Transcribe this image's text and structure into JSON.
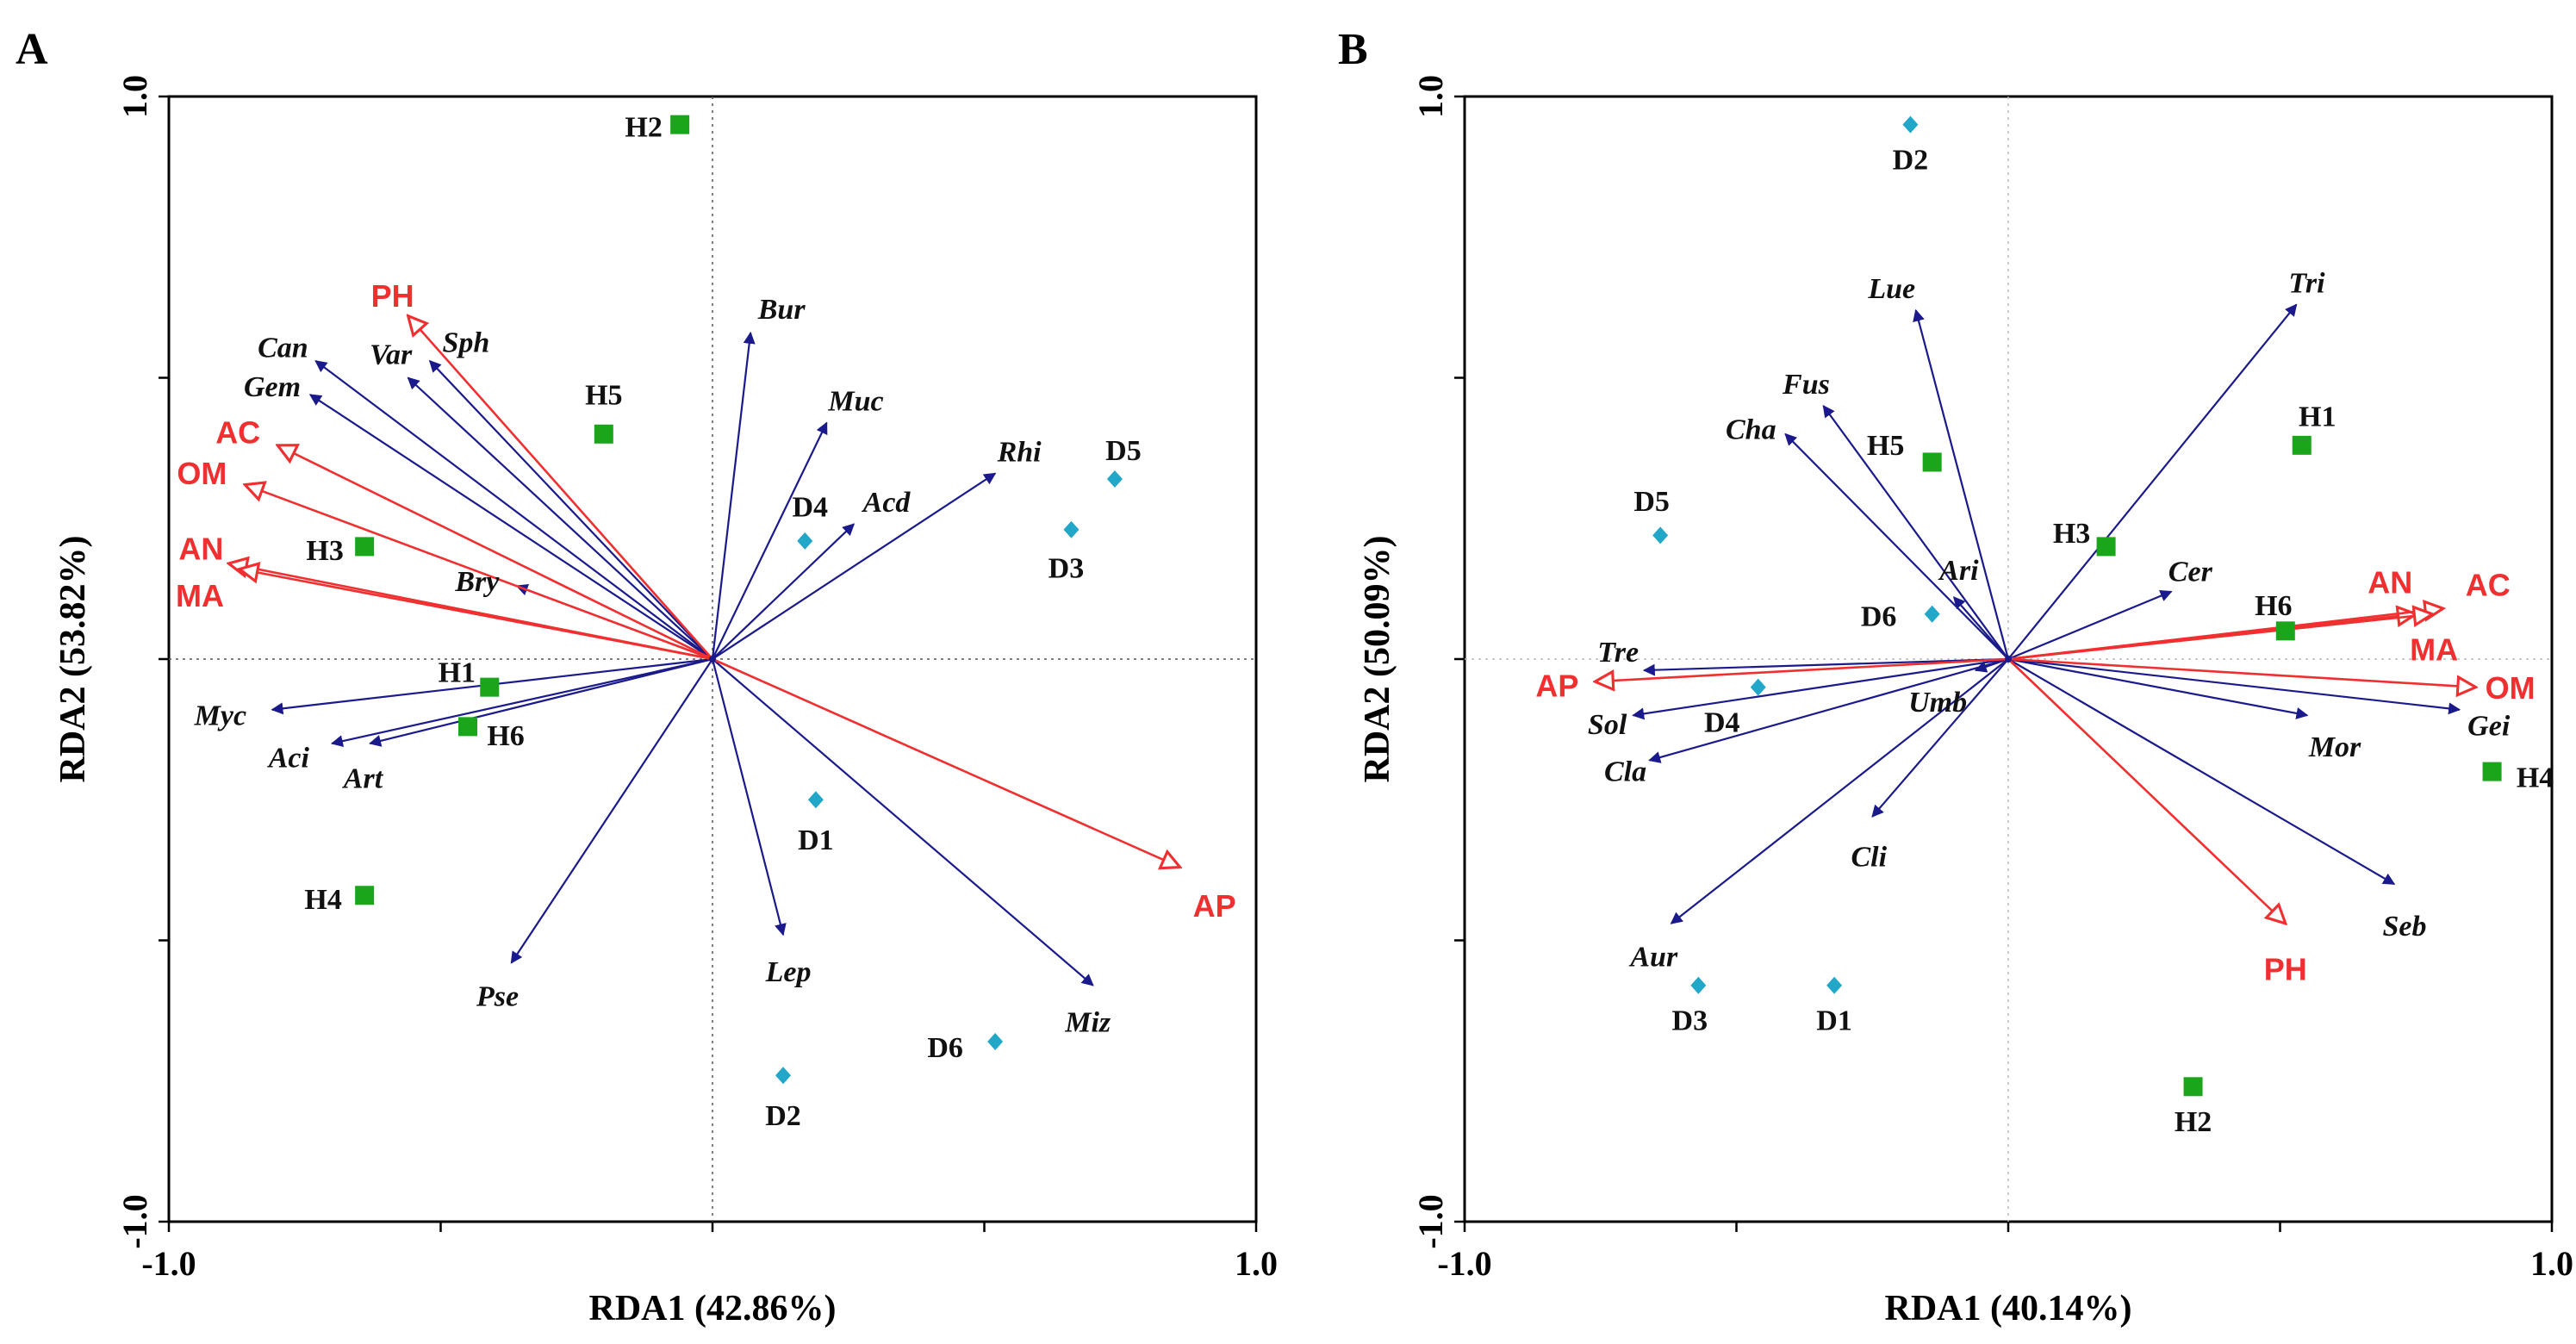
{
  "chart_data": [
    {
      "panel_label": "A",
      "type": "scatter",
      "subtype": "RDA biplot",
      "xlabel": "RDA1 (42.86%)",
      "ylabel": "RDA2 (53.82%)",
      "xlim": [
        -1.0,
        1.0
      ],
      "ylim": [
        -1.0,
        1.0
      ],
      "x_tick_labels": [
        "-1.0",
        "1.0"
      ],
      "y_tick_labels": [
        "1.0",
        "-1.0"
      ],
      "sites_healthy": [
        {
          "label": "H1",
          "x": -0.41,
          "y": -0.05
        },
        {
          "label": "H2",
          "x": -0.06,
          "y": 0.95
        },
        {
          "label": "H3",
          "x": -0.64,
          "y": 0.2
        },
        {
          "label": "H4",
          "x": -0.64,
          "y": -0.42
        },
        {
          "label": "H5",
          "x": -0.2,
          "y": 0.4
        },
        {
          "label": "H6",
          "x": -0.45,
          "y": -0.12
        }
      ],
      "sites_diseased": [
        {
          "label": "D1",
          "x": 0.19,
          "y": -0.25
        },
        {
          "label": "D2",
          "x": 0.13,
          "y": -0.74
        },
        {
          "label": "D3",
          "x": 0.66,
          "y": 0.23
        },
        {
          "label": "D4",
          "x": 0.17,
          "y": 0.21
        },
        {
          "label": "D5",
          "x": 0.74,
          "y": 0.32
        },
        {
          "label": "D6",
          "x": 0.52,
          "y": -0.68
        }
      ],
      "species": [
        {
          "label": "Can",
          "x": -0.73,
          "y": 0.53
        },
        {
          "label": "Var",
          "x": -0.56,
          "y": 0.5
        },
        {
          "label": "Sph",
          "x": -0.52,
          "y": 0.53
        },
        {
          "label": "Gem",
          "x": -0.74,
          "y": 0.47
        },
        {
          "label": "Bur",
          "x": 0.07,
          "y": 0.58
        },
        {
          "label": "Muc",
          "x": 0.21,
          "y": 0.42
        },
        {
          "label": "Acd",
          "x": 0.26,
          "y": 0.24
        },
        {
          "label": "Rhi",
          "x": 0.52,
          "y": 0.33
        },
        {
          "label": "Bry",
          "x": -0.36,
          "y": 0.13
        },
        {
          "label": "Myc",
          "x": -0.81,
          "y": -0.09
        },
        {
          "label": "Aci",
          "x": -0.7,
          "y": -0.15
        },
        {
          "label": "Art",
          "x": -0.63,
          "y": -0.15
        },
        {
          "label": "Pse",
          "x": -0.37,
          "y": -0.54
        },
        {
          "label": "Lep",
          "x": 0.13,
          "y": -0.49
        },
        {
          "label": "Miz",
          "x": 0.7,
          "y": -0.58
        }
      ],
      "environment": [
        {
          "label": "PH",
          "x": -0.56,
          "y": 0.61
        },
        {
          "label": "AC",
          "x": -0.8,
          "y": 0.38
        },
        {
          "label": "OM",
          "x": -0.86,
          "y": 0.31
        },
        {
          "label": "AN",
          "x": -0.89,
          "y": 0.17
        },
        {
          "label": "MA",
          "x": -0.87,
          "y": 0.16
        },
        {
          "label": "AP",
          "x": 0.86,
          "y": -0.37
        }
      ]
    },
    {
      "panel_label": "B",
      "type": "scatter",
      "subtype": "RDA biplot",
      "xlabel": "RDA1 (40.14%)",
      "ylabel": "RDA2 (50.09%)",
      "xlim": [
        -1.0,
        1.0
      ],
      "ylim": [
        -1.0,
        1.0
      ],
      "x_tick_labels": [
        "-1.0",
        "1.0"
      ],
      "y_tick_labels": [
        "1.0",
        "-1.0"
      ],
      "sites_healthy": [
        {
          "label": "H1",
          "x": 0.54,
          "y": 0.38
        },
        {
          "label": "H2",
          "x": 0.34,
          "y": -0.76
        },
        {
          "label": "H3",
          "x": 0.18,
          "y": 0.2
        },
        {
          "label": "H4",
          "x": 0.89,
          "y": -0.2
        },
        {
          "label": "H5",
          "x": -0.14,
          "y": 0.35
        },
        {
          "label": "H6",
          "x": 0.51,
          "y": 0.05
        }
      ],
      "sites_diseased": [
        {
          "label": "D1",
          "x": -0.32,
          "y": -0.58
        },
        {
          "label": "D2",
          "x": -0.18,
          "y": 0.95
        },
        {
          "label": "D3",
          "x": -0.57,
          "y": -0.58
        },
        {
          "label": "D4",
          "x": -0.46,
          "y": -0.05
        },
        {
          "label": "D5",
          "x": -0.64,
          "y": 0.22
        },
        {
          "label": "D6",
          "x": -0.14,
          "y": 0.08
        }
      ],
      "species": [
        {
          "label": "Lue",
          "x": -0.17,
          "y": 0.62
        },
        {
          "label": "Tri",
          "x": 0.53,
          "y": 0.63
        },
        {
          "label": "Fus",
          "x": -0.34,
          "y": 0.45
        },
        {
          "label": "Cha",
          "x": -0.41,
          "y": 0.4
        },
        {
          "label": "Ari",
          "x": -0.1,
          "y": 0.11
        },
        {
          "label": "Cer",
          "x": 0.3,
          "y": 0.12
        },
        {
          "label": "Umb",
          "x": -0.06,
          "y": -0.02
        },
        {
          "label": "Tre",
          "x": -0.67,
          "y": -0.02
        },
        {
          "label": "Sol",
          "x": -0.69,
          "y": -0.1
        },
        {
          "label": "Cla",
          "x": -0.66,
          "y": -0.18
        },
        {
          "label": "Cli",
          "x": -0.25,
          "y": -0.28
        },
        {
          "label": "Aur",
          "x": -0.62,
          "y": -0.47
        },
        {
          "label": "Mor",
          "x": 0.55,
          "y": -0.1
        },
        {
          "label": "Gei",
          "x": 0.83,
          "y": -0.09
        },
        {
          "label": "Seb",
          "x": 0.71,
          "y": -0.4
        }
      ],
      "environment": [
        {
          "label": "AN",
          "x": 0.75,
          "y": 0.08
        },
        {
          "label": "AC",
          "x": 0.8,
          "y": 0.09
        },
        {
          "label": "MA",
          "x": 0.78,
          "y": 0.08
        },
        {
          "label": "OM",
          "x": 0.86,
          "y": -0.05
        },
        {
          "label": "AP",
          "x": -0.76,
          "y": -0.04
        },
        {
          "label": "PH",
          "x": 0.51,
          "y": -0.47
        }
      ]
    }
  ]
}
